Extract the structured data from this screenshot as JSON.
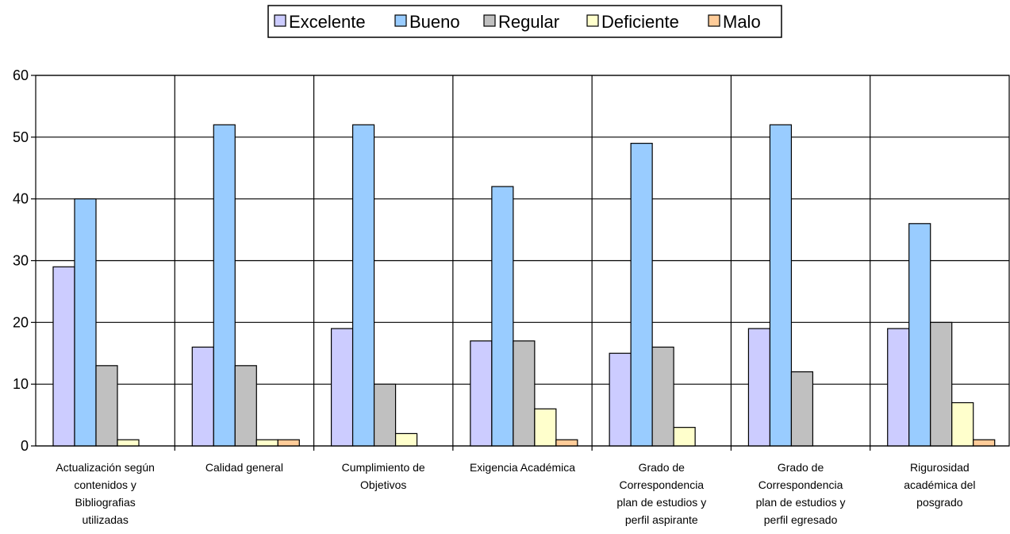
{
  "chart_data": {
    "type": "bar",
    "categories": [
      [
        "Actualización según",
        "contenidos y",
        "Bibliografias",
        "utilizadas"
      ],
      [
        "Calidad general"
      ],
      [
        "Cumplimiento de",
        "Objetivos"
      ],
      [
        "Exigencia Académica"
      ],
      [
        "Grado de",
        "Correspondencia",
        "plan de estudios y",
        "perfil aspirante"
      ],
      [
        "Grado de",
        "Correspondencia",
        "plan de estudios y",
        "perfil egresado"
      ],
      [
        "Rigurosidad",
        "académica del",
        "posgrado"
      ]
    ],
    "series": [
      {
        "name": "Excelente",
        "color": "#ccccff",
        "values": [
          29,
          16,
          19,
          17,
          15,
          19,
          19
        ]
      },
      {
        "name": "Bueno",
        "color": "#99ccff",
        "values": [
          40,
          52,
          52,
          42,
          49,
          52,
          36
        ]
      },
      {
        "name": "Regular",
        "color": "#c0c0c0",
        "values": [
          13,
          13,
          10,
          17,
          16,
          12,
          20
        ]
      },
      {
        "name": "Deficiente",
        "color": "#ffffcc",
        "values": [
          1,
          1,
          2,
          6,
          3,
          0,
          7
        ]
      },
      {
        "name": "Malo",
        "color": "#ffcc99",
        "values": [
          0,
          1,
          0,
          1,
          0,
          0,
          1
        ]
      }
    ],
    "ylim": [
      0,
      60
    ],
    "yticks": [
      0,
      10,
      20,
      30,
      40,
      50,
      60
    ],
    "grid": true,
    "legend_position": "top"
  }
}
